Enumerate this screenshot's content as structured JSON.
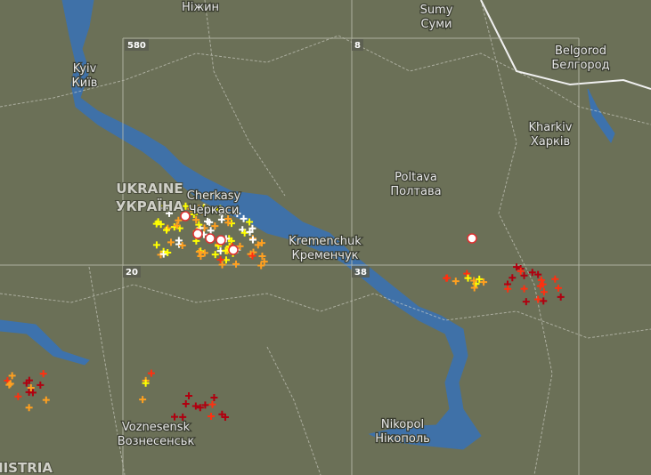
{
  "map": {
    "places": [
      {
        "name": "Ніжин"
      },
      {
        "name": "Sumy",
        "local": "Суми"
      },
      {
        "name": "Kyiv",
        "local": "Київ"
      },
      {
        "name": "Belgorod",
        "local": "Белгород"
      },
      {
        "name": "Kharkiv",
        "local": "Харків"
      },
      {
        "name": "Poltava",
        "local": "Полтава"
      },
      {
        "name": "Cherkasy",
        "local": "Черкаси"
      },
      {
        "name": "Kremenchuk",
        "local": "Кременчук"
      },
      {
        "name": "Nikopol",
        "local": "Нікополь"
      },
      {
        "name": "Voznesensk",
        "local": "Вознесенськ"
      }
    ],
    "country": {
      "name": "UKRAINE",
      "local": "УКРАЇНА"
    },
    "region": "NISTRIA",
    "grid_labels": [
      "580",
      "8",
      "20",
      "38"
    ]
  }
}
